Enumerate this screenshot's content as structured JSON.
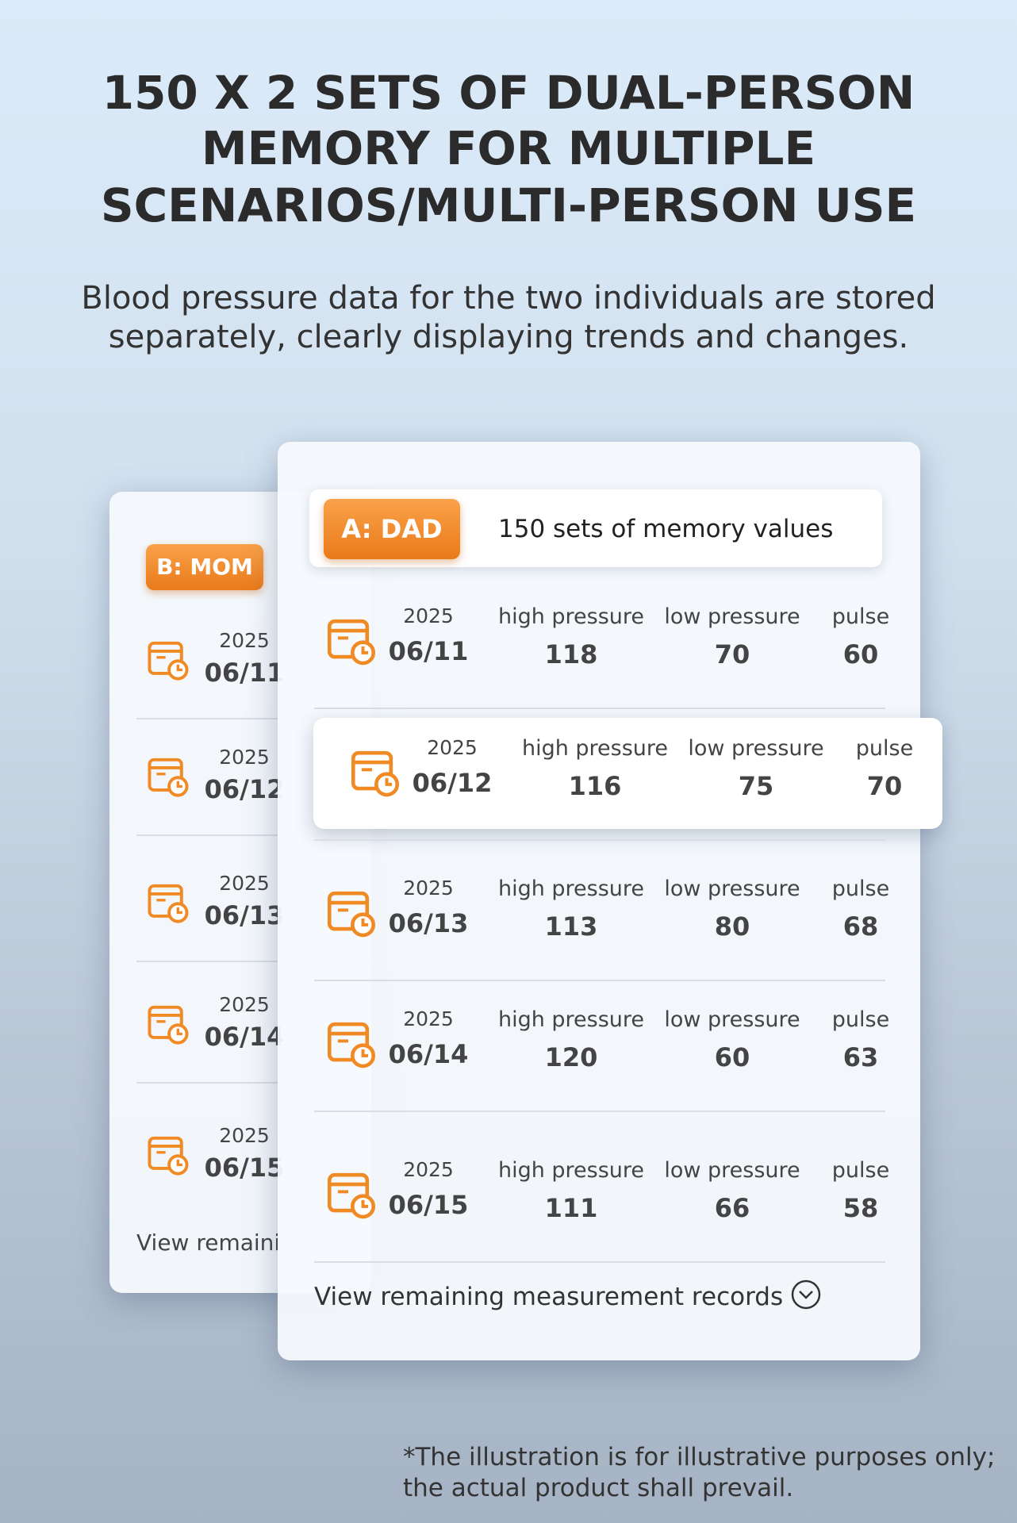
{
  "header": {
    "title_lines": [
      "150 X 2 SETS OF DUAL-PERSON",
      "MEMORY FOR MULTIPLE",
      "SCENARIOS/MULTI-PERSON USE"
    ],
    "subtitle_lines": [
      "Blood pressure data for the two individuals are stored",
      "separately, clearly displaying trends and changes."
    ]
  },
  "mom_card": {
    "label": "B: MOM",
    "records": [
      {
        "year": 2025,
        "date": "06/11"
      },
      {
        "year": 2025,
        "date": "06/12"
      },
      {
        "year": 2025,
        "date": "06/13"
      },
      {
        "year": 2025,
        "date": "06/14"
      },
      {
        "year": 2025,
        "date": "06/15"
      }
    ],
    "more": "View remaini"
  },
  "dad_card": {
    "label": "A: DAD",
    "memory": "150 sets of memory values",
    "columns": {
      "high": "high pressure",
      "low": "low pressure",
      "pulse": "pulse"
    },
    "records": [
      {
        "year": 2025,
        "date": "06/11",
        "high": 118,
        "low": 70,
        "pulse": 60
      },
      {
        "year": 2025,
        "date": "06/12",
        "high": 116,
        "low": 75,
        "pulse": 70
      },
      {
        "year": 2025,
        "date": "06/13",
        "high": 113,
        "low": 80,
        "pulse": 68
      },
      {
        "year": 2025,
        "date": "06/14",
        "high": 120,
        "low": 60,
        "pulse": 63
      },
      {
        "year": 2025,
        "date": "06/15",
        "high": 111,
        "low": 66,
        "pulse": 58
      }
    ],
    "more": "View remaining measurement records"
  },
  "footnote_lines": [
    "*The illustration is for illustrative purposes only;",
    "the actual product shall prevail."
  ]
}
